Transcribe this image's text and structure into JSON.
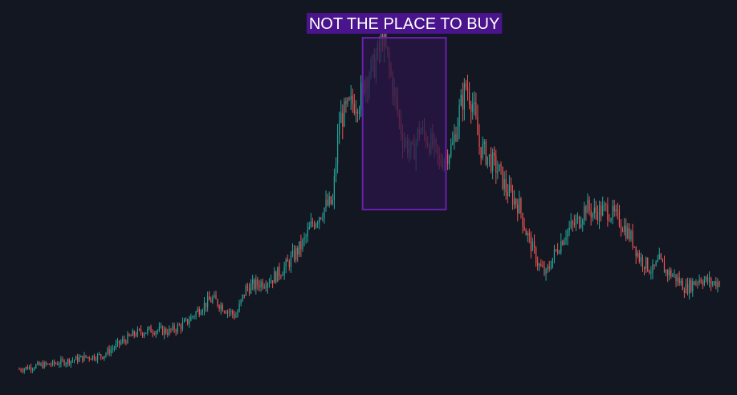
{
  "colors": {
    "background": "#131722",
    "up": "#26a69a",
    "down": "#ef5350",
    "zone_fill": "#2b1548",
    "zone_stroke": "#6a1fb0",
    "label_bg": "#4a148c",
    "label_text": "#ffffff"
  },
  "annotation": {
    "label": "NOT THE PLACE TO BUY",
    "x_start": 103,
    "x_end": 128,
    "price_top": 208,
    "price_bottom": 108
  },
  "chart_data": {
    "type": "candlestick",
    "grid": false,
    "legend": "none",
    "x_range": [
      0,
      210
    ],
    "y_range": [
      0,
      230
    ],
    "keypoints": [
      [
        0,
        15
      ],
      [
        5,
        17
      ],
      [
        10,
        18
      ],
      [
        15,
        20
      ],
      [
        20,
        22
      ],
      [
        25,
        23
      ],
      [
        30,
        30
      ],
      [
        35,
        36
      ],
      [
        40,
        38
      ],
      [
        45,
        37
      ],
      [
        50,
        42
      ],
      [
        55,
        52
      ],
      [
        58,
        56
      ],
      [
        62,
        50
      ],
      [
        65,
        46
      ],
      [
        68,
        62
      ],
      [
        72,
        65
      ],
      [
        76,
        68
      ],
      [
        80,
        75
      ],
      [
        85,
        88
      ],
      [
        88,
        100
      ],
      [
        92,
        110
      ],
      [
        94,
        112
      ],
      [
        96,
        160
      ],
      [
        100,
        170
      ],
      [
        102,
        172
      ],
      [
        104,
        185
      ],
      [
        106,
        190
      ],
      [
        108,
        200
      ],
      [
        109,
        210
      ],
      [
        112,
        180
      ],
      [
        115,
        150
      ],
      [
        118,
        140
      ],
      [
        120,
        155
      ],
      [
        122,
        150
      ],
      [
        124,
        145
      ],
      [
        126,
        135
      ],
      [
        128,
        140
      ],
      [
        130,
        145
      ],
      [
        132,
        165
      ],
      [
        134,
        180
      ],
      [
        136,
        170
      ],
      [
        138,
        145
      ],
      [
        140,
        140
      ],
      [
        142,
        135
      ],
      [
        144,
        130
      ],
      [
        146,
        120
      ],
      [
        148,
        115
      ],
      [
        150,
        110
      ],
      [
        152,
        95
      ],
      [
        156,
        75
      ],
      [
        158,
        70
      ],
      [
        160,
        80
      ],
      [
        164,
        95
      ],
      [
        168,
        102
      ],
      [
        170,
        110
      ],
      [
        172,
        106
      ],
      [
        176,
        108
      ],
      [
        180,
        102
      ],
      [
        184,
        90
      ],
      [
        186,
        80
      ],
      [
        190,
        72
      ],
      [
        192,
        78
      ],
      [
        194,
        72
      ],
      [
        196,
        70
      ],
      [
        200,
        62
      ],
      [
        204,
        68
      ],
      [
        208,
        65
      ],
      [
        210,
        66
      ]
    ]
  }
}
